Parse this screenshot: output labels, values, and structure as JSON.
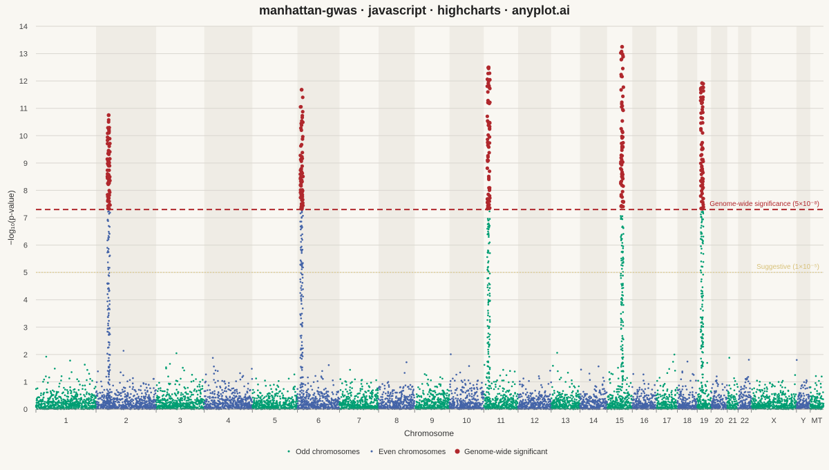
{
  "chart_data": {
    "type": "scatter",
    "title": "manhattan-gwas · javascript · highcharts · anyplot.ai",
    "xlabel": "Chromosome",
    "ylabel": "−log₁₀(p-value)",
    "ylim": [
      0,
      14
    ],
    "yticks": [
      0,
      1,
      2,
      3,
      4,
      5,
      6,
      7,
      8,
      9,
      10,
      11,
      12,
      13,
      14
    ],
    "grid": true,
    "chromosomes": [
      {
        "name": "1",
        "start": 0,
        "end": 1.0
      },
      {
        "name": "2",
        "start": 1.0,
        "end": 2.0
      },
      {
        "name": "3",
        "start": 2.0,
        "end": 2.8
      },
      {
        "name": "4",
        "start": 2.8,
        "end": 3.6
      },
      {
        "name": "5",
        "start": 3.6,
        "end": 4.35
      },
      {
        "name": "6",
        "start": 4.35,
        "end": 5.05
      },
      {
        "name": "7",
        "start": 5.05,
        "end": 5.7
      },
      {
        "name": "8",
        "start": 5.7,
        "end": 6.3
      },
      {
        "name": "9",
        "start": 6.3,
        "end": 6.88
      },
      {
        "name": "10",
        "start": 6.88,
        "end": 7.45
      },
      {
        "name": "11",
        "start": 7.45,
        "end": 8.02
      },
      {
        "name": "12",
        "start": 8.02,
        "end": 8.57
      },
      {
        "name": "13",
        "start": 8.57,
        "end": 9.05
      },
      {
        "name": "14",
        "start": 9.05,
        "end": 9.5
      },
      {
        "name": "15",
        "start": 9.5,
        "end": 9.92
      },
      {
        "name": "16",
        "start": 9.92,
        "end": 10.32
      },
      {
        "name": "17",
        "start": 10.32,
        "end": 10.67
      },
      {
        "name": "18",
        "start": 10.67,
        "end": 11.0
      },
      {
        "name": "19",
        "start": 11.0,
        "end": 11.23
      },
      {
        "name": "20",
        "start": 11.23,
        "end": 11.5
      },
      {
        "name": "21",
        "start": 11.5,
        "end": 11.68
      },
      {
        "name": "22",
        "start": 11.68,
        "end": 11.9
      },
      {
        "name": "X",
        "start": 11.9,
        "end": 12.65
      },
      {
        "name": "Y",
        "start": 12.65,
        "end": 12.88
      },
      {
        "name": "MT",
        "start": 12.88,
        "end": 13.1
      }
    ],
    "peaks": [
      {
        "chromosome": "2",
        "position": 1.21,
        "max": 10.75
      },
      {
        "chromosome": "6",
        "position": 4.42,
        "max": 11.68
      },
      {
        "chromosome": "11",
        "position": 7.53,
        "max": 12.5
      },
      {
        "chromosome": "15",
        "position": 9.75,
        "max": 13.25
      },
      {
        "chromosome": "19",
        "position": 11.08,
        "max": 11.92
      }
    ],
    "thresholds": [
      {
        "label": "Genome-wide significance (5×10⁻⁸)",
        "value": 7.3,
        "color": "#b0282d"
      },
      {
        "label": "Suggestive (1×10⁻⁵)",
        "value": 5.0,
        "color": "#d8c27a"
      }
    ],
    "series": [
      {
        "name": "Odd chromosomes",
        "color": "#009e73"
      },
      {
        "name": "Even chromosomes",
        "color": "#4464a8"
      },
      {
        "name": "Genome-wide significant",
        "color": "#b0282d"
      }
    ],
    "background_band_color": "#efece5"
  }
}
